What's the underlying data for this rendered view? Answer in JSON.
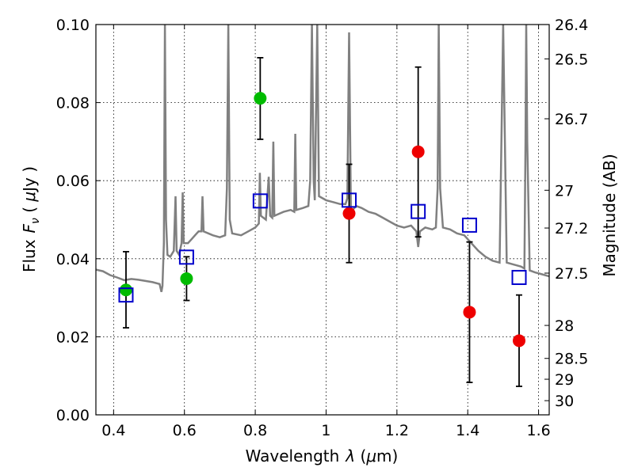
{
  "chart_data": {
    "type": "scatter",
    "xlabel": "Wavelength",
    "xlabel_symbol": "λ",
    "xlabel_unit_open": " (",
    "xlabel_unit_mu": "μ",
    "xlabel_unit_rest": "m)",
    "ylabel": "Flux",
    "ylabel_symbol_main": "F",
    "ylabel_symbol_sub": "ν",
    "ylabel_unit_open": " ( ",
    "ylabel_unit_mu": "μ",
    "ylabel_unit_rest": "Jy )",
    "y2label": "Magnitude (AB)",
    "xlim": [
      0.35,
      1.63
    ],
    "ylim": [
      0.0,
      0.1
    ],
    "grid": true,
    "x_ticks": [
      "0.4",
      "0.6",
      "0.8",
      "1",
      "1.2",
      "1.4",
      "1.6"
    ],
    "y_ticks": [
      "0.00",
      "0.02",
      "0.04",
      "0.06",
      "0.08",
      "0.10"
    ],
    "mag_ticks": [
      "26.4",
      "26.5",
      "26.7",
      "27",
      "27.2",
      "27.5",
      "28",
      "28.5",
      "29",
      "30"
    ],
    "colors": {
      "model": "#808080",
      "green": "#00bb00",
      "red": "#ee0000",
      "square": "#0000cc",
      "errorbar": "#000000"
    },
    "series": [
      {
        "marker": "circle-green",
        "points": [
          {
            "x": 0.435,
            "y": 0.032,
            "ylo": 0.0223,
            "yhi": 0.0418
          },
          {
            "x": 0.606,
            "y": 0.0349,
            "ylo": 0.0293,
            "yhi": 0.0405
          },
          {
            "x": 0.814,
            "y": 0.0811,
            "ylo": 0.0706,
            "yhi": 0.0915
          }
        ]
      },
      {
        "marker": "circle-red",
        "points": [
          {
            "x": 1.065,
            "y": 0.0516,
            "ylo": 0.039,
            "yhi": 0.0642
          },
          {
            "x": 1.26,
            "y": 0.0674,
            "ylo": 0.0456,
            "yhi": 0.0891
          },
          {
            "x": 1.405,
            "y": 0.0263,
            "ylo": 0.0083,
            "yhi": 0.0443
          },
          {
            "x": 1.545,
            "y": 0.019,
            "ylo": 0.0073,
            "yhi": 0.0307
          }
        ]
      },
      {
        "marker": "square-blue",
        "points": [
          {
            "x": 0.435,
            "y": 0.0307
          },
          {
            "x": 0.606,
            "y": 0.0404
          },
          {
            "x": 0.814,
            "y": 0.0548
          },
          {
            "x": 1.065,
            "y": 0.055
          },
          {
            "x": 1.26,
            "y": 0.0521
          },
          {
            "x": 1.405,
            "y": 0.0486
          },
          {
            "x": 1.545,
            "y": 0.0352
          }
        ]
      }
    ],
    "model_spectrum": [
      [
        0.35,
        0.0372
      ],
      [
        0.37,
        0.0368
      ],
      [
        0.39,
        0.0358
      ],
      [
        0.41,
        0.0352
      ],
      [
        0.43,
        0.0345
      ],
      [
        0.45,
        0.0348
      ],
      [
        0.47,
        0.0346
      ],
      [
        0.49,
        0.0343
      ],
      [
        0.51,
        0.034
      ],
      [
        0.53,
        0.0335
      ],
      [
        0.535,
        0.0315
      ],
      [
        0.538,
        0.033
      ],
      [
        0.542,
        0.044
      ],
      [
        0.545,
        0.1
      ],
      [
        0.548,
        0.05
      ],
      [
        0.552,
        0.041
      ],
      [
        0.56,
        0.0405
      ],
      [
        0.57,
        0.042
      ],
      [
        0.575,
        0.056
      ],
      [
        0.578,
        0.042
      ],
      [
        0.585,
        0.041
      ],
      [
        0.592,
        0.044
      ],
      [
        0.595,
        0.057
      ],
      [
        0.598,
        0.044
      ],
      [
        0.61,
        0.044
      ],
      [
        0.62,
        0.045
      ],
      [
        0.63,
        0.046
      ],
      [
        0.64,
        0.047
      ],
      [
        0.648,
        0.047
      ],
      [
        0.651,
        0.056
      ],
      [
        0.654,
        0.047
      ],
      [
        0.68,
        0.046
      ],
      [
        0.7,
        0.0455
      ],
      [
        0.715,
        0.046
      ],
      [
        0.72,
        0.058
      ],
      [
        0.724,
        0.1
      ],
      [
        0.728,
        0.05
      ],
      [
        0.735,
        0.0465
      ],
      [
        0.76,
        0.046
      ],
      [
        0.78,
        0.047
      ],
      [
        0.8,
        0.048
      ],
      [
        0.81,
        0.049
      ],
      [
        0.813,
        0.062
      ],
      [
        0.816,
        0.051
      ],
      [
        0.83,
        0.05
      ],
      [
        0.838,
        0.061
      ],
      [
        0.842,
        0.051
      ],
      [
        0.848,
        0.0505
      ],
      [
        0.851,
        0.07
      ],
      [
        0.854,
        0.051
      ],
      [
        0.88,
        0.052
      ],
      [
        0.9,
        0.0525
      ],
      [
        0.91,
        0.052
      ],
      [
        0.913,
        0.072
      ],
      [
        0.916,
        0.0525
      ],
      [
        0.935,
        0.053
      ],
      [
        0.95,
        0.0535
      ],
      [
        0.955,
        0.06
      ],
      [
        0.96,
        0.1
      ],
      [
        0.965,
        0.06
      ],
      [
        0.968,
        0.055
      ],
      [
        0.975,
        0.1
      ],
      [
        0.98,
        0.056
      ],
      [
        1.0,
        0.055
      ],
      [
        1.02,
        0.0545
      ],
      [
        1.04,
        0.054
      ],
      [
        1.055,
        0.054
      ],
      [
        1.06,
        0.0555
      ],
      [
        1.065,
        0.098
      ],
      [
        1.07,
        0.052
      ],
      [
        1.085,
        0.0535
      ],
      [
        1.1,
        0.053
      ],
      [
        1.12,
        0.052
      ],
      [
        1.14,
        0.0515
      ],
      [
        1.16,
        0.0505
      ],
      [
        1.18,
        0.0495
      ],
      [
        1.2,
        0.0485
      ],
      [
        1.22,
        0.048
      ],
      [
        1.24,
        0.0485
      ],
      [
        1.255,
        0.047
      ],
      [
        1.26,
        0.043
      ],
      [
        1.265,
        0.047
      ],
      [
        1.28,
        0.048
      ],
      [
        1.3,
        0.0475
      ],
      [
        1.31,
        0.048
      ],
      [
        1.315,
        0.058
      ],
      [
        1.318,
        0.1
      ],
      [
        1.322,
        0.058
      ],
      [
        1.33,
        0.048
      ],
      [
        1.35,
        0.0475
      ],
      [
        1.37,
        0.0465
      ],
      [
        1.39,
        0.046
      ],
      [
        1.41,
        0.044
      ],
      [
        1.43,
        0.042
      ],
      [
        1.45,
        0.0405
      ],
      [
        1.47,
        0.0395
      ],
      [
        1.49,
        0.039
      ],
      [
        1.495,
        0.07
      ],
      [
        1.5,
        0.1
      ],
      [
        1.505,
        0.07
      ],
      [
        1.51,
        0.039
      ],
      [
        1.53,
        0.0385
      ],
      [
        1.55,
        0.038
      ],
      [
        1.56,
        0.0375
      ],
      [
        1.563,
        0.07
      ],
      [
        1.565,
        0.1
      ],
      [
        1.568,
        0.07
      ],
      [
        1.575,
        0.037
      ],
      [
        1.59,
        0.0365
      ],
      [
        1.61,
        0.036
      ],
      [
        1.63,
        0.0355
      ]
    ]
  }
}
